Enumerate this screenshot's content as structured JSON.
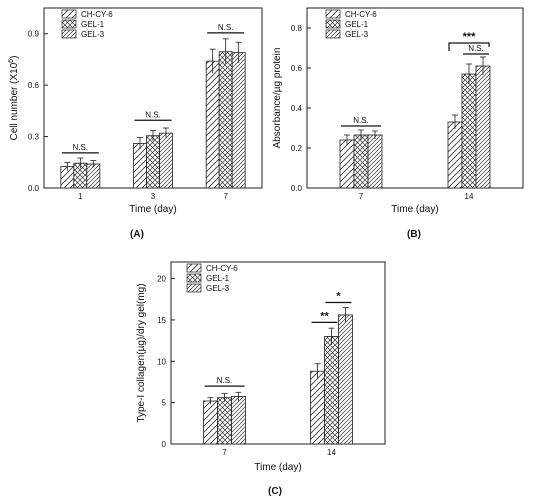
{
  "chart_data": [
    {
      "type": "bar",
      "panel_label": "(A)",
      "xlabel": "Time (day)",
      "ylabel": "Cell number (X10",
      "ylabel_sup": "6",
      "ylabel_end": ")",
      "ylim": [
        0,
        1.05
      ],
      "yticks": [
        "0.0",
        "0.3",
        "0.6",
        "0.9"
      ],
      "yticks_values": [
        0,
        0.3,
        0.6,
        0.9
      ],
      "categories": [
        "1",
        "3",
        "7"
      ],
      "legend": "top-left",
      "series": [
        {
          "name": "CH-CY-6",
          "values": [
            0.125,
            0.26,
            0.74
          ],
          "errors": [
            0.025,
            0.035,
            0.07
          ]
        },
        {
          "name": "GEL-1",
          "values": [
            0.145,
            0.305,
            0.795
          ],
          "errors": [
            0.03,
            0.03,
            0.075
          ]
        },
        {
          "name": "GEL-3",
          "values": [
            0.14,
            0.32,
            0.79
          ],
          "errors": [
            0.02,
            0.03,
            0.06
          ]
        }
      ],
      "annotations": [
        {
          "text": "N.S.",
          "category": 0,
          "type": "line",
          "from": 0,
          "to": 2,
          "y": 0.205
        },
        {
          "text": "N.S.",
          "category": 1,
          "type": "line",
          "from": 0,
          "to": 2,
          "y": 0.395
        },
        {
          "text": "N.S.",
          "category": 2,
          "type": "line",
          "from": 0,
          "to": 2,
          "y": 0.905
        }
      ]
    },
    {
      "type": "bar",
      "panel_label": "(B)",
      "xlabel": "Time (day)",
      "ylabel": "Absorbance/µg protein",
      "ylim": [
        0,
        0.9
      ],
      "yticks": [
        "0.0",
        "0.2",
        "0.4",
        "0.6",
        "0.8"
      ],
      "yticks_values": [
        0,
        0.2,
        0.4,
        0.6,
        0.8
      ],
      "categories": [
        "7",
        "14"
      ],
      "legend": "top-left",
      "series": [
        {
          "name": "CH-CY-6",
          "values": [
            0.24,
            0.33
          ],
          "errors": [
            0.025,
            0.035
          ]
        },
        {
          "name": "GEL-1",
          "values": [
            0.265,
            0.57
          ],
          "errors": [
            0.025,
            0.05
          ]
        },
        {
          "name": "GEL-3",
          "values": [
            0.265,
            0.61
          ],
          "errors": [
            0.02,
            0.045
          ]
        }
      ],
      "annotations": [
        {
          "text": "N.S.",
          "category": 0,
          "type": "line",
          "from": 0,
          "to": 2,
          "y": 0.31
        },
        {
          "text": "***",
          "category": 1,
          "type": "bracket",
          "from": 0,
          "to": 2,
          "y": 0.725
        },
        {
          "text": "N.S.",
          "category": 1,
          "type": "line",
          "from": 1,
          "to": 2,
          "y": 0.67
        }
      ]
    },
    {
      "type": "bar",
      "panel_label": "(C)",
      "xlabel": "Time (day)",
      "ylabel": "Type-I collagen(µg)/dry gel(mg)",
      "ylim": [
        0,
        22
      ],
      "yticks": [
        "0",
        "5",
        "10",
        "15",
        "20"
      ],
      "yticks_values": [
        0,
        5,
        10,
        15,
        20
      ],
      "categories": [
        "7",
        "14"
      ],
      "legend": "top-left",
      "series": [
        {
          "name": "CH-CY-6",
          "values": [
            5.2,
            8.8
          ],
          "errors": [
            0.4,
            0.9
          ]
        },
        {
          "name": "GEL-1",
          "values": [
            5.6,
            13.0
          ],
          "errors": [
            0.5,
            1.0
          ]
        },
        {
          "name": "GEL-3",
          "values": [
            5.75,
            15.6
          ],
          "errors": [
            0.5,
            0.9
          ]
        }
      ],
      "annotations": [
        {
          "text": "N.S.",
          "category": 0,
          "type": "line",
          "from": 0,
          "to": 2,
          "y": 7.0
        },
        {
          "text": "**",
          "category": 1,
          "type": "line",
          "from": 0,
          "to": 1,
          "y": 14.7
        },
        {
          "text": "*",
          "category": 1,
          "type": "line",
          "from": 1,
          "to": 2,
          "y": 17.1
        }
      ]
    }
  ],
  "colors": {
    "axis": "#222222",
    "bar_fill": "#ffffff",
    "hatch": "#333333"
  },
  "patterns": [
    "diagonal-hatch",
    "crosshatch",
    "diagonal-hatch-dense"
  ]
}
